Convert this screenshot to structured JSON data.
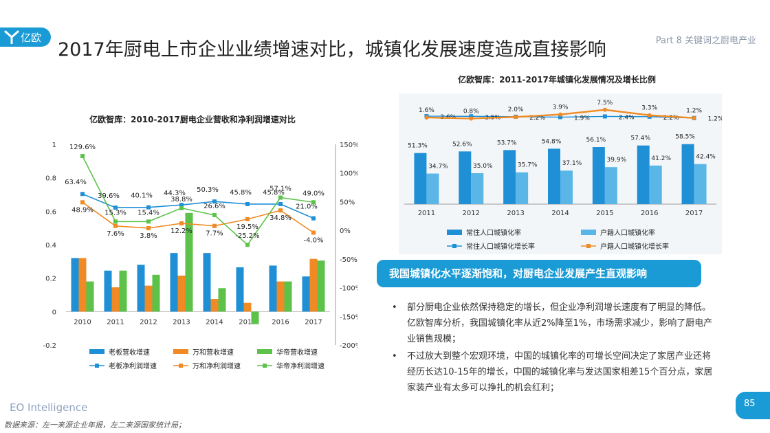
{
  "header": {
    "logo_text": "亿欧",
    "title": "2017年厨电上市企业业绩增速对比，城镇化发展速度造成直接影响",
    "part_label": "Part 8 关键词之厨电产业"
  },
  "colors": {
    "accent": "#1b9bd6",
    "laoban": "#1f8fd6",
    "wanhe": "#f08a24",
    "huadi": "#5cc24a",
    "resident_rate": "#1f8fd6",
    "household_rate": "#5bb6e8"
  },
  "chart_data": [
    {
      "type": "bar",
      "title": "亿欧智库：2010-2017厨电企业营收和净利润增速对比",
      "categories": [
        "2010",
        "2011",
        "2012",
        "2013",
        "2014",
        "2015",
        "2016",
        "2017"
      ],
      "y_left": {
        "min": -0.2,
        "max": 1,
        "ticks": [
          "1",
          "0.8",
          "0.6",
          "0.4",
          "0.2",
          "0",
          "-0.2"
        ],
        "tick_values": [
          1,
          0.8,
          0.6,
          0.4,
          0.2,
          0,
          -0.2
        ]
      },
      "y_right": {
        "min": -200,
        "max": 150,
        "ticks": [
          "150%",
          "100%",
          "50%",
          "0%",
          "-50%",
          "-100%",
          "-150%",
          "-200%"
        ],
        "tick_values": [
          150,
          100,
          50,
          0,
          -50,
          -100,
          -150,
          -200
        ]
      },
      "bar_series": [
        {
          "name": "老板营收增速",
          "color": "#1f8fd6",
          "values": [
            0.32,
            0.245,
            0.28,
            0.35,
            0.35,
            0.265,
            0.275,
            0.21
          ]
        },
        {
          "name": "万和营收增速",
          "color": "#f08a24",
          "values": [
            0.32,
            0.145,
            0.155,
            0.215,
            0.075,
            0.052,
            0.18,
            0.315
          ]
        },
        {
          "name": "华帝营收增速",
          "color": "#5cc24a",
          "values": [
            0.18,
            0.245,
            0.22,
            0.59,
            0.14,
            -0.075,
            0.18,
            0.305
          ]
        }
      ],
      "line_series": [
        {
          "name": "老板净利润增速",
          "color": "#1f8fd6",
          "marker": "square",
          "values": [
            63.4,
            39.6,
            40.1,
            44.3,
            50.3,
            45.8,
            45.8,
            21.0
          ],
          "labels": [
            "63.4%",
            "39.6%",
            "40.1%",
            "44.3%",
            "50.3%",
            "45.8%",
            "45.8%",
            "21.0%"
          ]
        },
        {
          "name": "万和净利润增速",
          "color": "#f08a24",
          "marker": "square",
          "values": [
            48.9,
            7.6,
            3.8,
            12.2,
            7.7,
            19.5,
            34.8,
            -4.0
          ],
          "labels": [
            "48.9%",
            "7.6%",
            "3.8%",
            "12.2%",
            "7.7%",
            "19.5%",
            "34.8%",
            "-4.0%"
          ]
        },
        {
          "name": "华帝净利润增速",
          "color": "#5cc24a",
          "marker": "square",
          "values": [
            129.6,
            15.3,
            15.4,
            38.8,
            26.6,
            -25.2,
            57.1,
            49.0
          ],
          "labels": [
            "129.6%",
            "15.3%",
            "15.4%",
            "38.8%",
            "26.6%",
            "-25.2%",
            "57.1%",
            "49.0%"
          ]
        }
      ],
      "legend_position": "bottom"
    },
    {
      "type": "bar",
      "title": "亿欧智库：2011-2017年城镇化发展情况及增长比例",
      "categories": [
        "2011",
        "2012",
        "2013",
        "2014",
        "2015",
        "2016",
        "2017"
      ],
      "bar_series": [
        {
          "name": "常住人口城镇化率",
          "color": "#1f8fd6",
          "values": [
            51.3,
            52.6,
            53.7,
            54.8,
            56.1,
            57.4,
            58.5
          ],
          "labels": [
            "51.3%",
            "52.6%",
            "53.7%",
            "54.8%",
            "56.1%",
            "57.4%",
            "58.5%"
          ]
        },
        {
          "name": "户籍人口城镇化率",
          "color": "#5bb6e8",
          "values": [
            34.7,
            35.0,
            35.7,
            37.1,
            39.9,
            41.2,
            42.4
          ],
          "labels": [
            "34.7%",
            "35.0%",
            "35.7%",
            "37.1%",
            "39.9%",
            "41.2%",
            "42.4%"
          ]
        }
      ],
      "line_series": [
        {
          "name": "常住人口城镇化增长率",
          "color": "#1f8fd6",
          "values": [
            2.6,
            2.5,
            2.2,
            1.9,
            2.4,
            2.2,
            1.2
          ],
          "labels": [
            "2.6%",
            "2.5%",
            "2.2%",
            "1.9%",
            "2.4%",
            "2.2%",
            "1.2%"
          ]
        },
        {
          "name": "户籍人口城镇化增长率",
          "color": "#f08a24",
          "values": [
            1.6,
            0.8,
            2.0,
            3.9,
            7.5,
            3.3,
            1.2
          ],
          "labels": [
            "1.6%",
            "0.8%",
            "2.0%",
            "3.9%",
            "7.5%",
            "3.3%",
            "1.2%"
          ]
        }
      ],
      "legend_position": "bottom"
    }
  ],
  "callout": "我国城镇化水平逐渐饱和，对厨电企业发展产生直观影响",
  "bullets": [
    {
      "symbol": "•",
      "text": "部分厨电企业依然保持稳定的增长，但企业净利润增长速度有了明显的降低。亿欧智库分析，我国城镇化率从近2%降至1%，市场需求减少，影响了厨电产业销售规模；"
    },
    {
      "symbol": "•",
      "text": "不过放大到整个宏观环境，中国的城镇化率的可增长空间决定了家居产业还将经历长达10-15年的增长，中国的城镇化率与发达国家相差15个百分点，家居家装产业有太多可以挣扎的机会红利；"
    }
  ],
  "footer": {
    "brand": "EO Intelligence",
    "source": "数据来源：左一来源企业年报，左二来源国家统计局；",
    "page_number": "85"
  }
}
